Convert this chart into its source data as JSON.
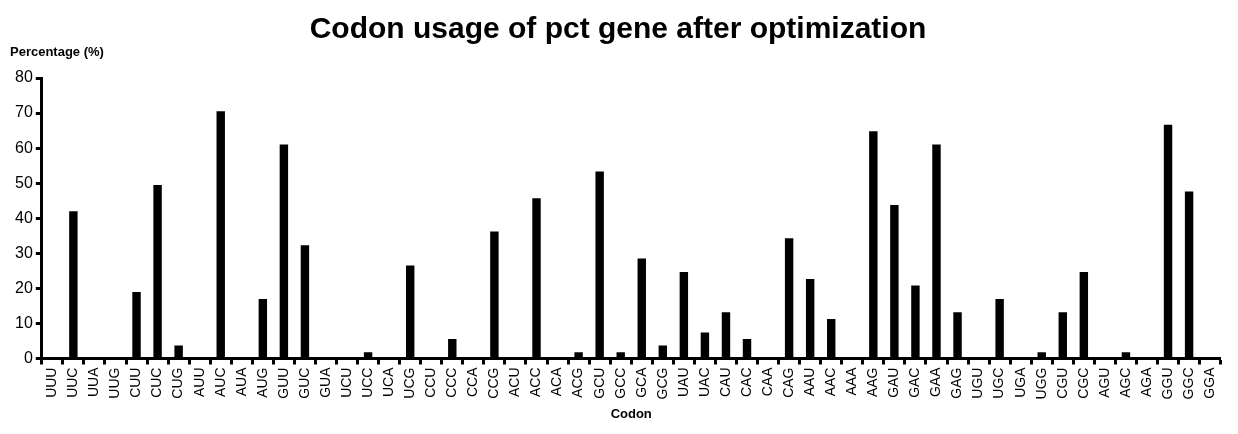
{
  "chart_data": {
    "type": "bar",
    "title": "Codon usage of pct gene after optimization",
    "xlabel": "Codon",
    "ylabel": "Percentage (%)",
    "categories": [
      "UUU",
      "UUC",
      "UUA",
      "UUG",
      "CUU",
      "CUC",
      "CUG",
      "AUU",
      "AUC",
      "AUA",
      "AUG",
      "GUU",
      "GUC",
      "GUA",
      "UCU",
      "UCC",
      "UCA",
      "UCG",
      "CCU",
      "CCC",
      "CCA",
      "CCG",
      "ACU",
      "ACC",
      "ACA",
      "ACG",
      "GCU",
      "GCC",
      "GCA",
      "GCG",
      "UAU",
      "UAC",
      "CAU",
      "CAC",
      "CAA",
      "CAG",
      "AAU",
      "AAC",
      "AAA",
      "AAG",
      "GAU",
      "GAC",
      "GAA",
      "GAG",
      "UGU",
      "UGC",
      "UGA",
      "UGG",
      "CGU",
      "CGC",
      "AGU",
      "AGC",
      "AGA",
      "GGU",
      "GGC",
      "GGA"
    ],
    "values": [
      0,
      42,
      0,
      0,
      19,
      49.5,
      3.7,
      0,
      70.5,
      0,
      17,
      61,
      32.3,
      0,
      0,
      1.8,
      0,
      26.5,
      0,
      5.6,
      0,
      36.2,
      0,
      45.7,
      0,
      1.8,
      53.3,
      1.8,
      28.5,
      3.7,
      24.7,
      7.4,
      13.2,
      5.6,
      0,
      34.3,
      22.7,
      11.3,
      0,
      64.8,
      43.8,
      20.8,
      61,
      13.2,
      0,
      17,
      0,
      1.8,
      13.2,
      24.7,
      0,
      1.8,
      0,
      66.7,
      47.6,
      0
    ],
    "color": "#000000",
    "ylim": [
      0,
      80
    ],
    "yticks": [
      0,
      10,
      20,
      30,
      40,
      50,
      60,
      70,
      80
    ],
    "grid": false,
    "legend": false
  }
}
